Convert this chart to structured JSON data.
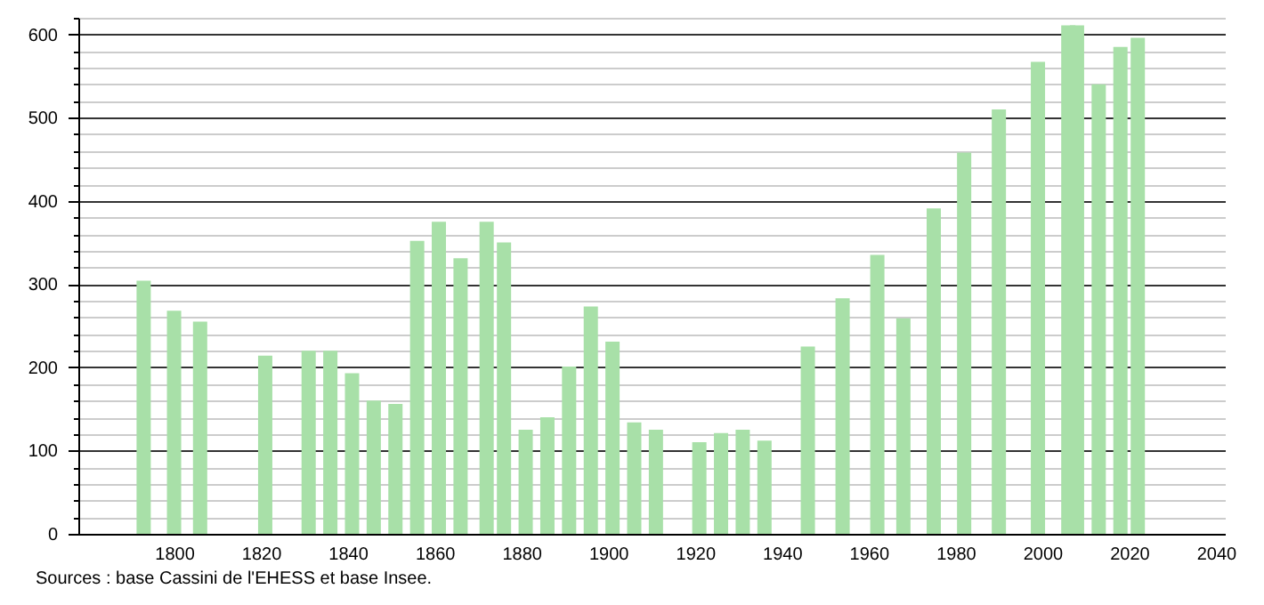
{
  "chart_data": {
    "type": "bar",
    "annotations": [
      "Sources : base Cassini de l'EHESS et base Insee."
    ],
    "x": [
      1793,
      1800,
      1806,
      1821,
      1831,
      1836,
      1841,
      1846,
      1851,
      1856,
      1861,
      1866,
      1872,
      1876,
      1881,
      1886,
      1891,
      1896,
      1901,
      1906,
      1911,
      1921,
      1926,
      1931,
      1936,
      1946,
      1954,
      1962,
      1968,
      1975,
      1982,
      1990,
      1999,
      2006,
      2008,
      2013,
      2018,
      2022
    ],
    "series": [
      {
        "color": "#a8e0a8",
        "values": [
          304,
          268,
          255,
          214,
          220,
          220,
          193,
          160,
          156,
          352,
          375,
          331,
          375,
          350,
          125,
          140,
          201,
          273,
          231,
          134,
          125,
          110,
          121,
          125,
          112,
          225,
          283,
          335,
          259,
          391,
          458,
          510,
          567,
          611,
          611,
          540,
          585,
          596
        ]
      }
    ],
    "xlim": [
      1780,
      2040
    ],
    "xticks": [
      1800,
      1820,
      1840,
      1860,
      1880,
      1900,
      1920,
      1940,
      1960,
      1980,
      2000,
      2020,
      2040
    ],
    "ylim": [
      0,
      620
    ],
    "yticks": [
      0,
      {
        "value": 20,
        "label": null
      },
      {
        "value": 40,
        "label": null
      },
      {
        "value": 60,
        "label": null
      },
      {
        "value": 80,
        "label": null
      },
      100,
      {
        "value": 120,
        "label": null
      },
      {
        "value": 140,
        "label": null
      },
      {
        "value": 160,
        "label": null
      },
      {
        "value": 180,
        "label": null
      },
      200,
      {
        "value": 220,
        "label": null
      },
      {
        "value": 240,
        "label": null
      },
      {
        "value": 260,
        "label": null
      },
      {
        "value": 280,
        "label": null
      },
      300,
      {
        "value": 320,
        "label": null
      },
      {
        "value": 340,
        "label": null
      },
      {
        "value": 360,
        "label": null
      },
      {
        "value": 380,
        "label": null
      },
      400,
      {
        "value": 420,
        "label": null
      },
      {
        "value": 440,
        "label": null
      },
      {
        "value": 460,
        "label": null
      },
      {
        "value": 480,
        "label": null
      },
      500,
      {
        "value": 520,
        "label": null
      },
      {
        "value": 540,
        "label": null
      },
      {
        "value": 560,
        "label": null
      },
      {
        "value": 580,
        "label": null
      },
      600,
      {
        "value": 620,
        "label": null
      }
    ],
    "grid": "y"
  }
}
